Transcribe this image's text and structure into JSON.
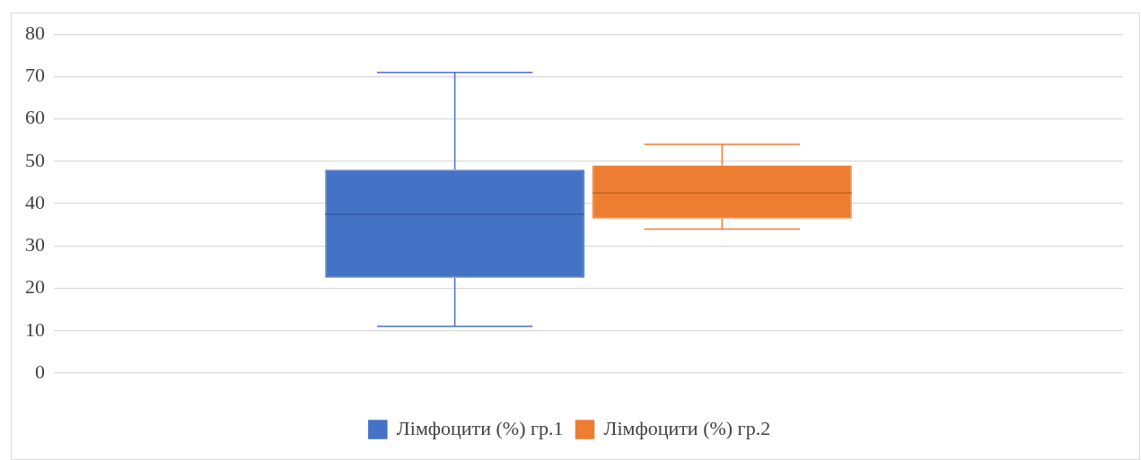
{
  "chart_data": {
    "type": "box",
    "categories": [
      null
    ],
    "series": [
      {
        "name": "Лімфоцити (%) гр.1",
        "color": "#4472c4",
        "boxes": [
          {
            "low": 11,
            "q1": 22.5,
            "median": 37.5,
            "q3": 48,
            "high": 71
          }
        ]
      },
      {
        "name": "Лімфоцити (%) гр.2",
        "color": "#ed7d31",
        "boxes": [
          {
            "low": 34,
            "q1": 36.5,
            "median": 42.5,
            "q3": 49,
            "high": 54
          }
        ]
      }
    ],
    "ylim": [
      0,
      80
    ],
    "yticks": [
      0,
      10,
      20,
      30,
      40,
      50,
      60,
      70,
      80
    ],
    "grid": "y",
    "legend": "bottom"
  }
}
